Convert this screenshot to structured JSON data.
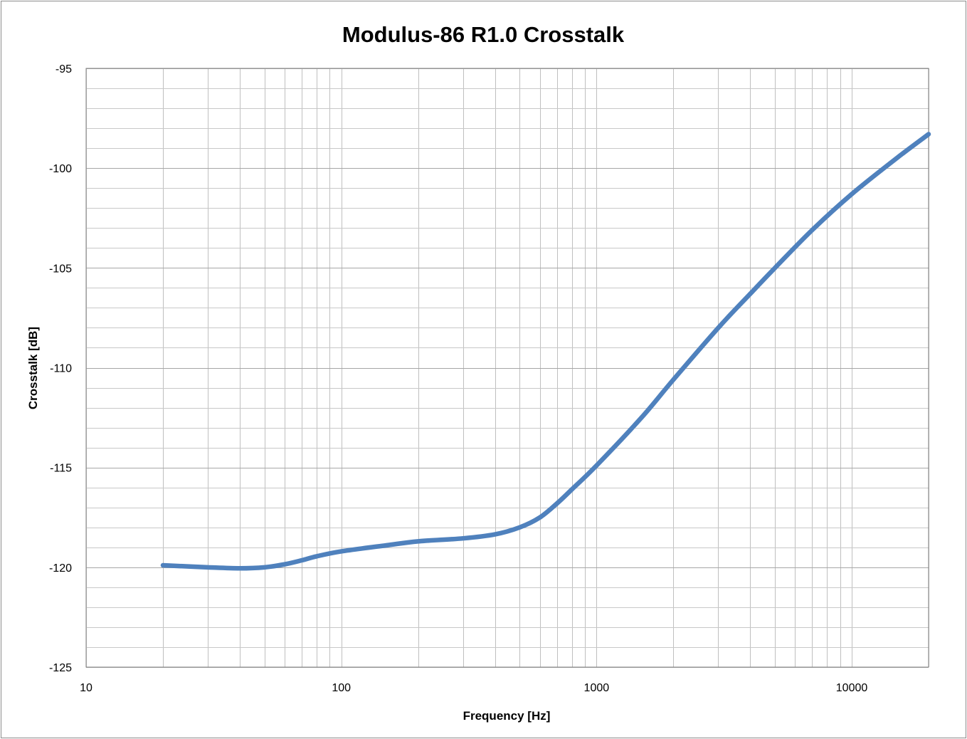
{
  "chart_data": {
    "type": "line",
    "title": "Modulus-86 R1.0 Crosstalk",
    "xlabel": "Frequency [Hz]",
    "ylabel": "Crosstalk [dB]",
    "x_scale": "log",
    "xlim": [
      10,
      20000
    ],
    "ylim": [
      -125,
      -95
    ],
    "x_ticks": [
      10,
      100,
      1000,
      10000
    ],
    "x_tick_labels": [
      "10",
      "100",
      "1000",
      "10000"
    ],
    "y_ticks": [
      -95,
      -100,
      -105,
      -110,
      -115,
      -120,
      -125
    ],
    "y_tick_labels": [
      "-95",
      "-100",
      "-105",
      "-110",
      "-115",
      "-120",
      "-125"
    ],
    "grid": true,
    "legend": "none",
    "series": [
      {
        "color": "#4f81bd",
        "x": [
          20,
          30,
          40,
          50,
          60,
          70,
          80,
          100,
          150,
          200,
          300,
          400,
          500,
          600,
          700,
          800,
          1000,
          1500,
          2000,
          3000,
          4000,
          5000,
          7000,
          10000,
          15000,
          20000
        ],
        "y": [
          -119.9,
          -120.0,
          -120.05,
          -120.0,
          -119.85,
          -119.65,
          -119.45,
          -119.2,
          -118.9,
          -118.7,
          -118.55,
          -118.35,
          -118.0,
          -117.5,
          -116.8,
          -116.1,
          -114.9,
          -112.5,
          -110.6,
          -108.0,
          -106.3,
          -105.0,
          -103.1,
          -101.3,
          -99.5,
          -98.3
        ]
      }
    ]
  }
}
